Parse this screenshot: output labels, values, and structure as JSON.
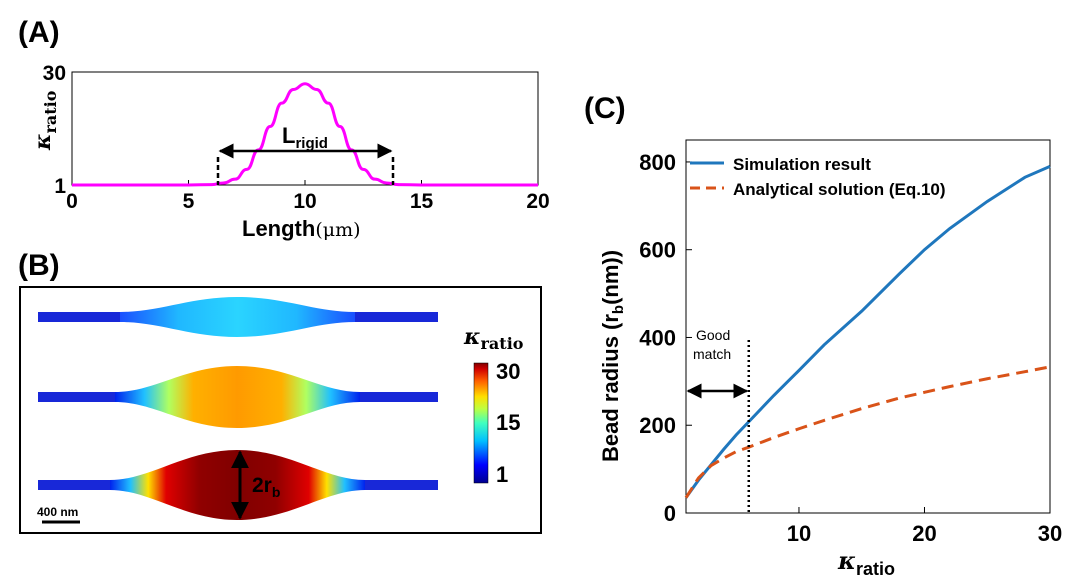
{
  "panel_a": {
    "label": "(A)",
    "ylabel_symbol": "κ",
    "ylabel_sub": "ratio",
    "xlabel_main": "Length",
    "xlabel_unit": "(μm)",
    "annotation_main": "L",
    "annotation_sub": "rigid",
    "color": "#ff00ff"
  },
  "panel_b": {
    "label": "(B)",
    "colorbar_title_symbol": "κ",
    "colorbar_title_sub": "ratio",
    "colorbar_ticks": [
      "30",
      "15",
      "1"
    ],
    "radius_label_main": "2r",
    "radius_label_sub": "b",
    "scalebar_label": "400 nm"
  },
  "panel_c": {
    "label": "(C)",
    "ylabel": "Bead radius (r",
    "ylabel_sub": "b",
    "ylabel_tail": "(nm))",
    "xlabel_symbol": "κ",
    "xlabel_sub": "ratio",
    "annotation_line1": "Good",
    "annotation_line2": "match"
  },
  "chart_data": [
    {
      "type": "line",
      "panel": "A",
      "title": "",
      "xlabel": "Length (μm)",
      "ylabel": "κratio",
      "xlim": [
        0,
        20
      ],
      "ylim": [
        1,
        30
      ],
      "xticks": [
        0,
        5,
        10,
        15,
        20
      ],
      "yticks": [
        1,
        30
      ],
      "series": [
        {
          "color": "#ff00ff",
          "x": [
            0,
            2,
            4,
            5,
            6,
            6.5,
            7,
            7.5,
            8,
            8.5,
            9,
            9.5,
            10,
            10.5,
            11,
            11.5,
            12,
            12.5,
            13,
            13.5,
            14,
            15,
            16,
            18,
            20
          ],
          "y": [
            1,
            1,
            1,
            1,
            1.1,
            1.5,
            2.5,
            5,
            10,
            16,
            22,
            25.5,
            27,
            25.5,
            22,
            16,
            10,
            5,
            2.5,
            1.5,
            1.1,
            1,
            1,
            1,
            1
          ]
        }
      ],
      "annotations": [
        {
          "text": "Lrigid",
          "x_start": 6.5,
          "x_end": 13.5
        }
      ]
    },
    {
      "type": "line",
      "panel": "C",
      "title": "",
      "xlabel": "κratio",
      "ylabel": "Bead radius (rb(nm))",
      "xlim": [
        1,
        30
      ],
      "ylim": [
        0,
        850
      ],
      "xticks": [
        10,
        20,
        30
      ],
      "yticks": [
        0,
        200,
        400,
        600,
        800
      ],
      "legend_position": "top-left",
      "series": [
        {
          "name": "Simulation result",
          "color": "#1f77bd",
          "style": "solid",
          "x": [
            1,
            2,
            3,
            4,
            5,
            6,
            8,
            10,
            12,
            15,
            18,
            20,
            22,
            25,
            28,
            30
          ],
          "y": [
            35,
            75,
            110,
            145,
            178,
            208,
            268,
            325,
            383,
            460,
            545,
            600,
            648,
            710,
            765,
            790
          ]
        },
        {
          "name": "Analytical solution (Eq.10)",
          "color": "#d95319",
          "style": "dashed",
          "x": [
            1,
            2,
            3,
            4,
            5,
            6,
            8,
            10,
            12,
            15,
            18,
            20,
            22,
            25,
            28,
            30
          ],
          "y": [
            35,
            80,
            108,
            125,
            140,
            150,
            172,
            192,
            211,
            238,
            262,
            275,
            288,
            306,
            322,
            333
          ]
        }
      ],
      "vline_x": 6,
      "double_arrow_x": [
        1,
        6
      ]
    }
  ]
}
